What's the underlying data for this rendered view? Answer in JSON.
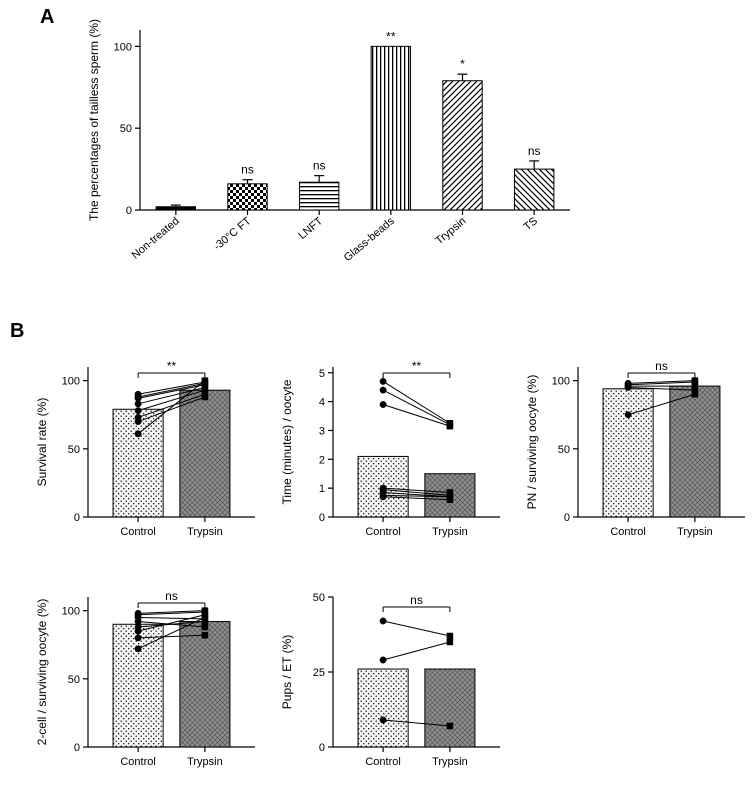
{
  "panelA": {
    "label": "A",
    "type": "bar",
    "ylabel": "The percentages of tailless sperm (%)",
    "ylim": [
      0,
      110
    ],
    "yticks": [
      0,
      50,
      100
    ],
    "categories": [
      "Non-treated",
      "-30°C FT",
      "LNFT",
      "Glass-beads",
      "Trypsin",
      "TS"
    ],
    "values": [
      2,
      16,
      17,
      100,
      79,
      25
    ],
    "errs": [
      1,
      2.5,
      4,
      0,
      4,
      5
    ],
    "sig": [
      "",
      "ns",
      "ns",
      "**",
      "*",
      "ns"
    ],
    "patterns": [
      "solid",
      "check",
      "hstripe",
      "vstripe",
      "diag1",
      "diag2"
    ],
    "bar_fill": "#000000",
    "bar_width": 0.55,
    "axis_color": "#000000",
    "bg": "#ffffff",
    "label_fontsize": 12,
    "tick_fontsize": 11
  },
  "panelB": {
    "label": "B",
    "bar_fill_control": "#f2f2f2",
    "bar_pattern_control": "dots",
    "bar_fill_trypsin": "#8f8f8f",
    "bar_pattern_trypsin": "crosshatch",
    "bar_width": 0.7,
    "cat_labels": [
      "Control",
      "Trypsin"
    ],
    "charts": [
      {
        "id": "survival",
        "ylabel": "Survival rate (%)",
        "ylim": [
          0,
          110
        ],
        "yticks": [
          0,
          50,
          100
        ],
        "bars": [
          79,
          93
        ],
        "sig": "**",
        "pairs": [
          [
            88,
            98
          ],
          [
            87,
            97
          ],
          [
            83,
            95
          ],
          [
            78,
            93
          ],
          [
            73,
            90
          ],
          [
            70,
            88
          ],
          [
            61,
            100
          ],
          [
            90,
            99
          ]
        ]
      },
      {
        "id": "time",
        "ylabel": "Time (minutes) / oocyte",
        "ylim": [
          0,
          5.2
        ],
        "yticks": [
          0,
          1,
          2,
          3,
          4,
          5
        ],
        "bars": [
          2.1,
          1.5
        ],
        "sig": "**",
        "pairs": [
          [
            4.7,
            3.25
          ],
          [
            4.4,
            3.2
          ],
          [
            3.9,
            3.15
          ],
          [
            1.0,
            0.85
          ],
          [
            0.95,
            0.75
          ],
          [
            0.85,
            0.7
          ],
          [
            0.75,
            0.7
          ],
          [
            0.7,
            0.6
          ]
        ]
      },
      {
        "id": "pn",
        "ylabel": "PN / surviving oocyte (%)",
        "ylim": [
          0,
          110
        ],
        "yticks": [
          0,
          50,
          100
        ],
        "bars": [
          94,
          96
        ],
        "sig": "ns",
        "pairs": [
          [
            98,
            100
          ],
          [
            97,
            99
          ],
          [
            96,
            96
          ],
          [
            95,
            93
          ],
          [
            75,
            90
          ]
        ]
      },
      {
        "id": "twocell",
        "ylabel": "2-cell / surviving oocyte (%)",
        "ylim": [
          0,
          110
        ],
        "yticks": [
          0,
          50,
          100
        ],
        "bars": [
          90,
          92
        ],
        "sig": "ns",
        "pairs": [
          [
            98,
            100
          ],
          [
            97,
            99
          ],
          [
            95,
            94
          ],
          [
            92,
            88
          ],
          [
            88,
            92
          ],
          [
            85,
            97
          ],
          [
            80,
            82
          ],
          [
            72,
            95
          ]
        ]
      },
      {
        "id": "pups",
        "ylabel": "Pups / ET (%)",
        "ylim": [
          0,
          50
        ],
        "yticks": [
          0,
          25,
          50
        ],
        "bars": [
          26,
          26
        ],
        "sig": "ns",
        "pairs": [
          [
            42,
            37
          ],
          [
            29,
            35
          ],
          [
            9,
            7
          ]
        ]
      }
    ],
    "layout_rows": [
      3,
      2
    ]
  }
}
